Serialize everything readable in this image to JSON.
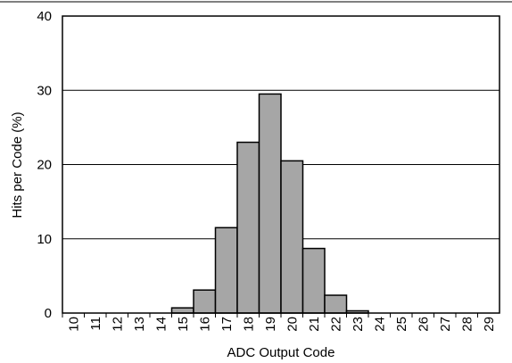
{
  "chart_data": {
    "type": "bar",
    "title": "",
    "xlabel": "ADC Output Code",
    "ylabel": "Hits per Code (%)",
    "ylim": [
      0,
      40
    ],
    "yticks": [
      "0",
      "10",
      "20",
      "30",
      "40"
    ],
    "grid": "horizontal",
    "categories": [
      "10",
      "11",
      "12",
      "13",
      "14",
      "15",
      "16",
      "17",
      "18",
      "19",
      "20",
      "21",
      "22",
      "23",
      "24",
      "25",
      "26",
      "27",
      "28",
      "29"
    ],
    "values": [
      0,
      0,
      0,
      0,
      0,
      0.7,
      3.1,
      11.5,
      23.0,
      29.5,
      20.5,
      8.7,
      2.4,
      0.3,
      0,
      0,
      0,
      0,
      0,
      0
    ]
  }
}
